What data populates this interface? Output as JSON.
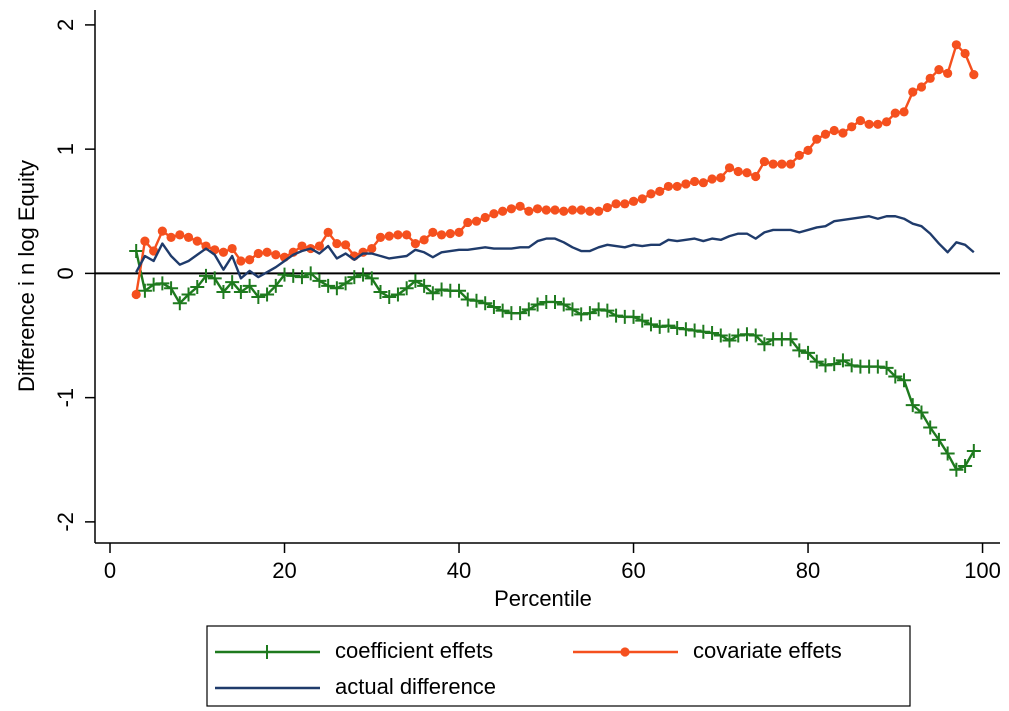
{
  "chart_data": {
    "type": "line",
    "xlabel": "Percentile",
    "ylabel": "Difference i n log Equity",
    "x": [
      3,
      4,
      5,
      6,
      7,
      8,
      9,
      10,
      11,
      12,
      13,
      14,
      15,
      16,
      17,
      18,
      19,
      20,
      21,
      22,
      23,
      24,
      25,
      26,
      27,
      28,
      29,
      30,
      31,
      32,
      33,
      34,
      35,
      36,
      37,
      38,
      39,
      40,
      41,
      42,
      43,
      44,
      45,
      46,
      47,
      48,
      49,
      50,
      51,
      52,
      53,
      54,
      55,
      56,
      57,
      58,
      59,
      60,
      61,
      62,
      63,
      64,
      65,
      66,
      67,
      68,
      69,
      70,
      71,
      72,
      73,
      74,
      75,
      76,
      77,
      78,
      79,
      80,
      81,
      82,
      83,
      84,
      85,
      86,
      87,
      88,
      89,
      90,
      91,
      92,
      93,
      94,
      95,
      96,
      97,
      98,
      99
    ],
    "series": [
      {
        "name": "coefficient effets",
        "color": "#1e7a1e",
        "marker": "plus",
        "values": [
          0.18,
          -0.14,
          -0.09,
          -0.08,
          -0.12,
          -0.24,
          -0.17,
          -0.11,
          -0.02,
          -0.04,
          -0.15,
          -0.07,
          -0.15,
          -0.1,
          -0.19,
          -0.17,
          -0.1,
          -0.01,
          -0.02,
          -0.03,
          0.0,
          -0.06,
          -0.1,
          -0.12,
          -0.08,
          -0.03,
          -0.01,
          -0.04,
          -0.15,
          -0.19,
          -0.17,
          -0.12,
          -0.06,
          -0.1,
          -0.16,
          -0.13,
          -0.14,
          -0.14,
          -0.21,
          -0.22,
          -0.24,
          -0.27,
          -0.3,
          -0.32,
          -0.32,
          -0.29,
          -0.25,
          -0.23,
          -0.23,
          -0.25,
          -0.29,
          -0.33,
          -0.32,
          -0.29,
          -0.3,
          -0.34,
          -0.35,
          -0.35,
          -0.38,
          -0.41,
          -0.43,
          -0.42,
          -0.44,
          -0.45,
          -0.46,
          -0.47,
          -0.48,
          -0.5,
          -0.54,
          -0.5,
          -0.49,
          -0.5,
          -0.57,
          -0.53,
          -0.53,
          -0.53,
          -0.62,
          -0.64,
          -0.71,
          -0.74,
          -0.73,
          -0.7,
          -0.74,
          -0.75,
          -0.75,
          -0.75,
          -0.76,
          -0.83,
          -0.86,
          -1.06,
          -1.12,
          -1.24,
          -1.34,
          -1.45,
          -1.58,
          -1.55,
          -1.43
        ]
      },
      {
        "name": "covariate effets",
        "color": "#f5501e",
        "marker": "circle",
        "values": [
          -0.17,
          0.26,
          0.18,
          0.34,
          0.29,
          0.31,
          0.29,
          0.26,
          0.22,
          0.19,
          0.17,
          0.2,
          0.1,
          0.11,
          0.16,
          0.17,
          0.15,
          0.13,
          0.17,
          0.22,
          0.2,
          0.22,
          0.33,
          0.24,
          0.23,
          0.14,
          0.17,
          0.2,
          0.29,
          0.3,
          0.31,
          0.31,
          0.24,
          0.27,
          0.33,
          0.31,
          0.32,
          0.33,
          0.41,
          0.42,
          0.45,
          0.48,
          0.5,
          0.52,
          0.54,
          0.5,
          0.52,
          0.51,
          0.51,
          0.5,
          0.51,
          0.51,
          0.5,
          0.5,
          0.53,
          0.56,
          0.56,
          0.58,
          0.6,
          0.64,
          0.66,
          0.7,
          0.7,
          0.72,
          0.74,
          0.73,
          0.76,
          0.77,
          0.85,
          0.82,
          0.81,
          0.78,
          0.9,
          0.88,
          0.88,
          0.88,
          0.95,
          0.99,
          1.08,
          1.12,
          1.15,
          1.13,
          1.18,
          1.23,
          1.2,
          1.2,
          1.22,
          1.29,
          1.3,
          1.46,
          1.5,
          1.57,
          1.64,
          1.61,
          1.84,
          1.77,
          1.6
        ]
      },
      {
        "name": "actual difference",
        "color": "#1f3b6b",
        "marker": "none",
        "values": [
          0.01,
          0.14,
          0.1,
          0.24,
          0.14,
          0.07,
          0.1,
          0.15,
          0.2,
          0.15,
          0.03,
          0.14,
          -0.04,
          0.02,
          -0.03,
          0.01,
          0.05,
          0.1,
          0.15,
          0.18,
          0.2,
          0.16,
          0.22,
          0.12,
          0.16,
          0.11,
          0.16,
          0.16,
          0.14,
          0.12,
          0.13,
          0.14,
          0.19,
          0.17,
          0.13,
          0.17,
          0.18,
          0.19,
          0.19,
          0.2,
          0.21,
          0.2,
          0.2,
          0.2,
          0.21,
          0.21,
          0.26,
          0.28,
          0.28,
          0.25,
          0.21,
          0.18,
          0.18,
          0.21,
          0.23,
          0.22,
          0.21,
          0.23,
          0.22,
          0.23,
          0.23,
          0.27,
          0.26,
          0.27,
          0.28,
          0.26,
          0.28,
          0.27,
          0.3,
          0.32,
          0.32,
          0.28,
          0.33,
          0.35,
          0.35,
          0.35,
          0.33,
          0.35,
          0.37,
          0.38,
          0.42,
          0.43,
          0.44,
          0.45,
          0.46,
          0.44,
          0.46,
          0.46,
          0.44,
          0.4,
          0.38,
          0.32,
          0.24,
          0.17,
          0.25,
          0.23,
          0.17
        ]
      }
    ],
    "hline": 0,
    "xlim": [
      -1.72,
      102
    ],
    "ylim": [
      -2.17,
      2.12
    ],
    "xticks": [
      0,
      20,
      40,
      60,
      80,
      100
    ],
    "yticks": [
      -2,
      -1,
      0,
      1,
      2
    ],
    "grid": false,
    "legend": "bottom"
  }
}
